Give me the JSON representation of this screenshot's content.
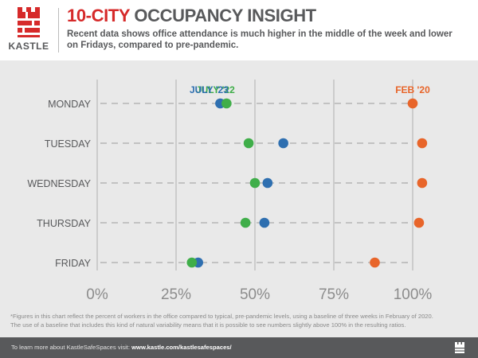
{
  "header": {
    "brand": "KASTLE",
    "title_accent": "10-CITY",
    "title_rest": " OCCUPANCY INSIGHT",
    "subtitle": "Recent data shows office attendance is much higher in the middle of the week and lower on Fridays, compared to pre-pandemic."
  },
  "colors": {
    "july22": "#3fae49",
    "july23": "#2e6fb0",
    "feb20": "#e8652a",
    "title_accent": "#d62a2a",
    "text": "#58595b"
  },
  "chart_data": {
    "type": "scatter",
    "categories": [
      "MONDAY",
      "TUESDAY",
      "WEDNESDAY",
      "THURSDAY",
      "FRIDAY"
    ],
    "series": [
      {
        "name": "JULY '22",
        "color": "#3fae49",
        "values": [
          41,
          48,
          50,
          47,
          30
        ]
      },
      {
        "name": "JULY '23",
        "color": "#2e6fb0",
        "values": [
          39,
          59,
          54,
          53,
          32
        ]
      },
      {
        "name": "FEB '20",
        "color": "#e8652a",
        "values": [
          100,
          103,
          103,
          102,
          88
        ]
      }
    ],
    "xlim": [
      0,
      100
    ],
    "xticks": [
      0,
      25,
      50,
      75,
      100
    ],
    "xtick_labels": [
      "0%",
      "25%",
      "50%",
      "75%",
      "100%"
    ],
    "grid": true,
    "legend": "top, labels above data"
  },
  "footnote": {
    "line1": "*Figures in this chart reflect the percent of workers in the office compared to typical, pre-pandemic levels, using a baseline of three weeks in February of 2020.",
    "line2": "The use of a baseline that includes this kind of natural variability means that it is possible to see numbers slightly above 100% in the resulting ratios."
  },
  "footer": {
    "prefix": "To learn more about KastleSafeSpaces visit: ",
    "link": "www.kastle.com/kastlesafespaces/"
  }
}
